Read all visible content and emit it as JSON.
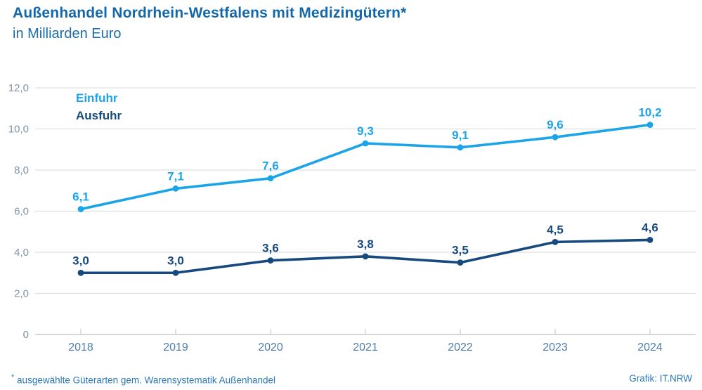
{
  "header": {
    "title": "Außenhandel Nordrhein-Westfalens mit Medizingütern*",
    "subtitle": "in Milliarden Euro"
  },
  "footer": {
    "footnote_marker": "*",
    "footnote": "ausgewählte Güterarten gem. Warensystematik Außenhandel",
    "credit": "Grafik: IT.NRW"
  },
  "theme": {
    "background": "#FFFFFF",
    "title_color": "#1468A9",
    "subtitle_color": "#1B6DAC",
    "grid_color": "#DDDFE1",
    "axis_color": "#C8CCD0",
    "y_tick_color": "#8093A6",
    "x_tick_color": "#4E7EA9",
    "footer_color": "#2B79B6"
  },
  "chart_data": {
    "type": "line",
    "title": "Außenhandel Nordrhein-Westfalens mit Medizingütern*",
    "subtitle": "in Milliarden Euro",
    "xlabel": "",
    "ylabel": "Milliarden Euro",
    "categories": [
      "2018",
      "2019",
      "2020",
      "2021",
      "2022",
      "2023",
      "2024"
    ],
    "series": [
      {
        "name": "Einfuhr",
        "color": "#1BA4E8",
        "values": [
          6.1,
          7.1,
          7.6,
          9.3,
          9.1,
          9.6,
          10.2
        ],
        "labels": [
          "6,1",
          "7,1",
          "7,6",
          "9,3",
          "9,1",
          "9,6",
          "10,2"
        ]
      },
      {
        "name": "Ausfuhr",
        "color": "#16497D",
        "values": [
          3.0,
          3.0,
          3.6,
          3.8,
          3.5,
          4.5,
          4.6
        ],
        "labels": [
          "3,0",
          "3,0",
          "3,6",
          "3,8",
          "3,5",
          "4,5",
          "4,6"
        ]
      }
    ],
    "y_axis": {
      "min": 0,
      "max": 12,
      "step": 2,
      "tick_labels": [
        "0",
        "2,0",
        "4,0",
        "6,0",
        "8,0",
        "10,0",
        "12,0"
      ]
    },
    "grid": true,
    "legend_position": "top-left"
  }
}
